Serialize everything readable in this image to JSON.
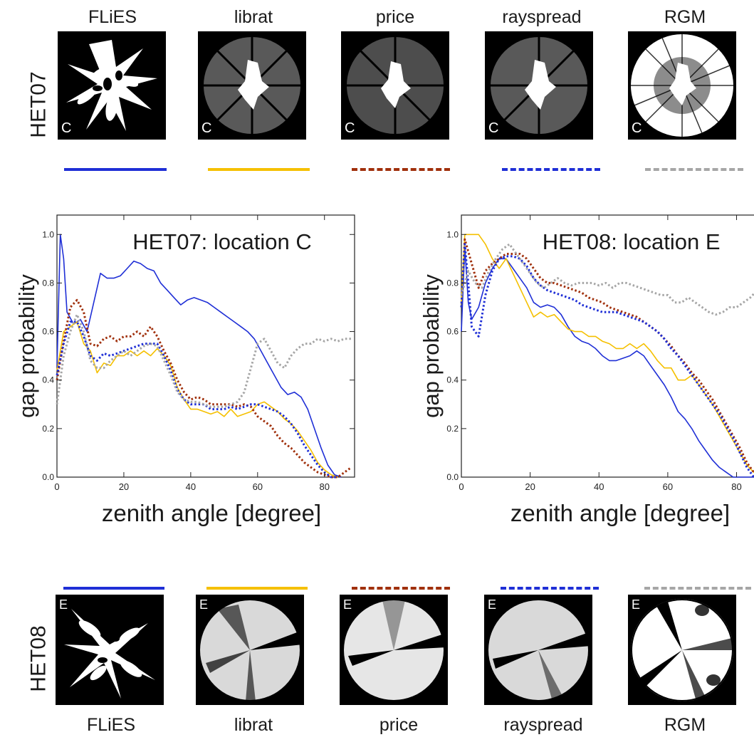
{
  "top_row": {
    "scene": "HET07",
    "models": [
      "FLiES",
      "librat",
      "price",
      "rayspread",
      "RGM"
    ],
    "location_letter": "C"
  },
  "bottom_row": {
    "scene": "HET08",
    "models": [
      "FLiES",
      "librat",
      "price",
      "rayspread",
      "RGM"
    ],
    "location_letter": "E"
  },
  "legend_styles": [
    {
      "model": "FLiES",
      "color": "#1f2fd6",
      "dash": "solid"
    },
    {
      "model": "librat",
      "color": "#f5c000",
      "dash": "solid"
    },
    {
      "model": "price",
      "color": "#a0300c",
      "dash": "dashed"
    },
    {
      "model": "rayspread",
      "color": "#1f2fd6",
      "dash": "dashed"
    },
    {
      "model": "RGM",
      "color": "#a6a6a6",
      "dash": "dashed"
    }
  ],
  "chart_data": [
    {
      "type": "line",
      "title": "HET07: location C",
      "xlabel": "zenith angle [degree]",
      "ylabel": "gap probability",
      "xlim": [
        0,
        89
      ],
      "ylim": [
        0,
        1.08
      ],
      "xticks": [
        0,
        20,
        40,
        60,
        80
      ],
      "yticks": [
        0.0,
        0.2,
        0.4,
        0.6,
        0.8,
        1.0
      ],
      "series": [
        {
          "name": "FLiES",
          "color": "#1f2fd6",
          "style": "solid",
          "x": [
            0,
            1,
            2,
            3,
            5,
            7,
            9,
            11,
            13,
            15,
            17,
            19,
            21,
            23,
            25,
            27,
            29,
            31,
            33,
            35,
            37,
            39,
            41,
            43,
            45,
            47,
            49,
            51,
            53,
            55,
            57,
            59,
            61,
            63,
            65,
            67,
            69,
            71,
            73,
            75,
            77,
            79,
            81,
            83,
            85
          ],
          "y": [
            0.45,
            1.0,
            0.9,
            0.68,
            0.63,
            0.65,
            0.6,
            0.72,
            0.84,
            0.82,
            0.82,
            0.83,
            0.86,
            0.89,
            0.88,
            0.86,
            0.85,
            0.8,
            0.77,
            0.74,
            0.71,
            0.73,
            0.74,
            0.73,
            0.72,
            0.7,
            0.68,
            0.66,
            0.64,
            0.62,
            0.6,
            0.57,
            0.52,
            0.47,
            0.42,
            0.37,
            0.34,
            0.35,
            0.33,
            0.28,
            0.2,
            0.12,
            0.05,
            0.01,
            0.0
          ]
        },
        {
          "name": "librat",
          "color": "#f5c000",
          "style": "solid",
          "x": [
            0,
            2,
            4,
            6,
            8,
            10,
            12,
            14,
            16,
            18,
            20,
            22,
            24,
            26,
            28,
            30,
            32,
            34,
            36,
            38,
            40,
            42,
            44,
            46,
            48,
            50,
            52,
            54,
            56,
            58,
            60,
            62,
            64,
            66,
            68,
            70,
            72,
            74,
            76,
            78,
            80,
            82,
            84
          ],
          "y": [
            0.44,
            0.6,
            0.62,
            0.64,
            0.55,
            0.52,
            0.43,
            0.47,
            0.46,
            0.5,
            0.5,
            0.52,
            0.5,
            0.52,
            0.5,
            0.53,
            0.5,
            0.46,
            0.37,
            0.32,
            0.28,
            0.28,
            0.27,
            0.26,
            0.27,
            0.25,
            0.28,
            0.25,
            0.26,
            0.27,
            0.3,
            0.31,
            0.29,
            0.27,
            0.24,
            0.22,
            0.19,
            0.15,
            0.11,
            0.06,
            0.03,
            0.01,
            0.0
          ]
        },
        {
          "name": "price",
          "color": "#a0300c",
          "style": "dashed",
          "x": [
            0,
            2,
            4,
            6,
            8,
            10,
            12,
            14,
            16,
            18,
            20,
            22,
            24,
            26,
            28,
            30,
            32,
            34,
            36,
            38,
            40,
            42,
            44,
            46,
            48,
            50,
            52,
            54,
            56,
            58,
            60,
            62,
            64,
            66,
            68,
            70,
            72,
            74,
            76,
            78,
            80,
            82,
            84,
            86,
            88
          ],
          "y": [
            0.4,
            0.56,
            0.7,
            0.73,
            0.68,
            0.55,
            0.54,
            0.57,
            0.58,
            0.56,
            0.58,
            0.58,
            0.6,
            0.58,
            0.62,
            0.58,
            0.52,
            0.47,
            0.4,
            0.35,
            0.32,
            0.33,
            0.32,
            0.3,
            0.3,
            0.3,
            0.3,
            0.29,
            0.3,
            0.29,
            0.25,
            0.23,
            0.21,
            0.17,
            0.14,
            0.12,
            0.09,
            0.06,
            0.04,
            0.02,
            0.01,
            0.0,
            0.0,
            0.02,
            0.04
          ]
        },
        {
          "name": "rayspread",
          "color": "#1f2fd6",
          "style": "dashed",
          "x": [
            0,
            2,
            4,
            6,
            8,
            10,
            12,
            14,
            16,
            18,
            20,
            22,
            24,
            26,
            28,
            30,
            32,
            34,
            36,
            38,
            40,
            42,
            44,
            46,
            48,
            50,
            52,
            54,
            56,
            58,
            60,
            62,
            64,
            66,
            68,
            70,
            72,
            74,
            76,
            78,
            80,
            82,
            84
          ],
          "y": [
            0.42,
            0.55,
            0.64,
            0.64,
            0.58,
            0.5,
            0.48,
            0.51,
            0.5,
            0.51,
            0.52,
            0.53,
            0.54,
            0.55,
            0.55,
            0.55,
            0.5,
            0.44,
            0.36,
            0.32,
            0.3,
            0.3,
            0.3,
            0.28,
            0.28,
            0.28,
            0.29,
            0.28,
            0.29,
            0.3,
            0.3,
            0.29,
            0.28,
            0.27,
            0.25,
            0.22,
            0.18,
            0.13,
            0.09,
            0.05,
            0.02,
            0.0,
            0.0
          ]
        },
        {
          "name": "RGM",
          "color": "#a6a6a6",
          "style": "dashed",
          "x": [
            0,
            2,
            4,
            6,
            8,
            10,
            12,
            14,
            16,
            18,
            20,
            22,
            24,
            26,
            28,
            30,
            32,
            34,
            36,
            38,
            40,
            42,
            44,
            46,
            48,
            50,
            52,
            54,
            56,
            58,
            60,
            62,
            64,
            66,
            68,
            70,
            72,
            74,
            76,
            78,
            80,
            82,
            84,
            86,
            88
          ],
          "y": [
            0.3,
            0.5,
            0.6,
            0.67,
            0.6,
            0.48,
            0.45,
            0.45,
            0.48,
            0.5,
            0.52,
            0.5,
            0.52,
            0.54,
            0.55,
            0.54,
            0.48,
            0.42,
            0.35,
            0.32,
            0.31,
            0.31,
            0.3,
            0.29,
            0.29,
            0.29,
            0.3,
            0.31,
            0.35,
            0.45,
            0.55,
            0.57,
            0.52,
            0.47,
            0.45,
            0.5,
            0.53,
            0.55,
            0.55,
            0.57,
            0.56,
            0.57,
            0.56,
            0.57,
            0.57
          ]
        }
      ]
    },
    {
      "type": "line",
      "title": "HET08: location E",
      "xlabel": "zenith angle [degree]",
      "ylabel": "gap probability",
      "xlim": [
        0,
        89
      ],
      "ylim": [
        0,
        1.08
      ],
      "xticks": [
        0,
        20,
        40,
        60,
        80
      ],
      "yticks": [
        0.0,
        0.2,
        0.4,
        0.6,
        0.8,
        1.0
      ],
      "series": [
        {
          "name": "FLiES",
          "color": "#1f2fd6",
          "style": "solid",
          "x": [
            0,
            1,
            2,
            3,
            5,
            7,
            9,
            11,
            13,
            15,
            17,
            19,
            21,
            23,
            25,
            27,
            29,
            31,
            33,
            35,
            37,
            39,
            41,
            43,
            45,
            47,
            49,
            51,
            53,
            55,
            57,
            59,
            61,
            63,
            65,
            67,
            69,
            71,
            73,
            75,
            77,
            79,
            81,
            83,
            85
          ],
          "y": [
            0.6,
            0.95,
            0.72,
            0.65,
            0.7,
            0.8,
            0.86,
            0.9,
            0.9,
            0.86,
            0.82,
            0.78,
            0.72,
            0.7,
            0.71,
            0.7,
            0.67,
            0.62,
            0.58,
            0.56,
            0.55,
            0.53,
            0.5,
            0.48,
            0.48,
            0.49,
            0.5,
            0.52,
            0.5,
            0.46,
            0.42,
            0.38,
            0.33,
            0.27,
            0.24,
            0.2,
            0.15,
            0.11,
            0.07,
            0.04,
            0.02,
            0.0,
            0.0,
            0.0,
            0.0
          ]
        },
        {
          "name": "librat",
          "color": "#f5c000",
          "style": "solid",
          "x": [
            0,
            1,
            3,
            5,
            7,
            9,
            11,
            13,
            15,
            17,
            19,
            21,
            23,
            25,
            27,
            29,
            31,
            33,
            35,
            37,
            39,
            41,
            43,
            45,
            47,
            49,
            51,
            53,
            55,
            57,
            59,
            61,
            63,
            65,
            67,
            69,
            71,
            73,
            75,
            77,
            79,
            81,
            83,
            85,
            87
          ],
          "y": [
            0.72,
            1.0,
            1.0,
            1.0,
            0.96,
            0.9,
            0.86,
            0.9,
            0.84,
            0.78,
            0.72,
            0.66,
            0.68,
            0.66,
            0.67,
            0.64,
            0.61,
            0.6,
            0.6,
            0.58,
            0.58,
            0.56,
            0.55,
            0.53,
            0.53,
            0.55,
            0.53,
            0.55,
            0.52,
            0.48,
            0.45,
            0.45,
            0.4,
            0.4,
            0.42,
            0.38,
            0.34,
            0.3,
            0.25,
            0.2,
            0.15,
            0.1,
            0.05,
            0.02,
            0.0
          ]
        },
        {
          "name": "price",
          "color": "#a0300c",
          "style": "dashed",
          "x": [
            0,
            1,
            3,
            5,
            7,
            9,
            11,
            13,
            15,
            17,
            19,
            21,
            23,
            25,
            27,
            29,
            31,
            33,
            35,
            37,
            39,
            41,
            43,
            45,
            47,
            49,
            51,
            53,
            55,
            57,
            59,
            61,
            63,
            65,
            67,
            69,
            71,
            73,
            75,
            77,
            79,
            81,
            83,
            85,
            87
          ],
          "y": [
            0.7,
            0.98,
            0.88,
            0.78,
            0.85,
            0.88,
            0.9,
            0.92,
            0.92,
            0.92,
            0.9,
            0.86,
            0.82,
            0.8,
            0.8,
            0.79,
            0.78,
            0.77,
            0.76,
            0.74,
            0.73,
            0.72,
            0.7,
            0.69,
            0.68,
            0.67,
            0.66,
            0.64,
            0.62,
            0.6,
            0.57,
            0.54,
            0.5,
            0.47,
            0.43,
            0.4,
            0.36,
            0.32,
            0.27,
            0.22,
            0.17,
            0.12,
            0.06,
            0.02,
            0.0
          ]
        },
        {
          "name": "rayspread",
          "color": "#1f2fd6",
          "style": "dashed",
          "x": [
            0,
            1,
            2,
            3,
            4,
            5,
            7,
            9,
            11,
            13,
            15,
            17,
            19,
            21,
            23,
            25,
            27,
            29,
            31,
            33,
            35,
            37,
            39,
            41,
            43,
            45,
            47,
            49,
            51,
            53,
            55,
            57,
            59,
            61,
            63,
            65,
            67,
            69,
            71,
            73,
            75,
            77,
            79,
            81,
            83,
            85
          ],
          "y": [
            0.7,
            0.96,
            0.8,
            0.62,
            0.6,
            0.58,
            0.75,
            0.85,
            0.9,
            0.91,
            0.91,
            0.9,
            0.87,
            0.82,
            0.79,
            0.77,
            0.76,
            0.75,
            0.74,
            0.73,
            0.71,
            0.7,
            0.69,
            0.68,
            0.68,
            0.68,
            0.67,
            0.66,
            0.65,
            0.64,
            0.62,
            0.6,
            0.57,
            0.53,
            0.5,
            0.46,
            0.42,
            0.38,
            0.34,
            0.3,
            0.26,
            0.21,
            0.16,
            0.1,
            0.04,
            0.0
          ]
        },
        {
          "name": "RGM",
          "color": "#a6a6a6",
          "style": "dashed",
          "x": [
            0,
            2,
            4,
            6,
            8,
            10,
            12,
            14,
            16,
            18,
            20,
            22,
            24,
            26,
            28,
            30,
            32,
            34,
            36,
            38,
            40,
            42,
            44,
            46,
            48,
            50,
            52,
            54,
            56,
            58,
            60,
            62,
            64,
            66,
            68,
            70,
            72,
            74,
            76,
            78,
            80,
            82,
            84,
            86,
            88
          ],
          "y": [
            0.75,
            0.85,
            0.8,
            0.78,
            0.85,
            0.9,
            0.94,
            0.96,
            0.92,
            0.88,
            0.84,
            0.8,
            0.78,
            0.8,
            0.82,
            0.8,
            0.79,
            0.8,
            0.8,
            0.8,
            0.79,
            0.8,
            0.78,
            0.8,
            0.8,
            0.79,
            0.78,
            0.77,
            0.76,
            0.75,
            0.75,
            0.72,
            0.72,
            0.74,
            0.72,
            0.7,
            0.68,
            0.67,
            0.68,
            0.7,
            0.7,
            0.72,
            0.74,
            0.77,
            0.82
          ]
        }
      ]
    }
  ]
}
